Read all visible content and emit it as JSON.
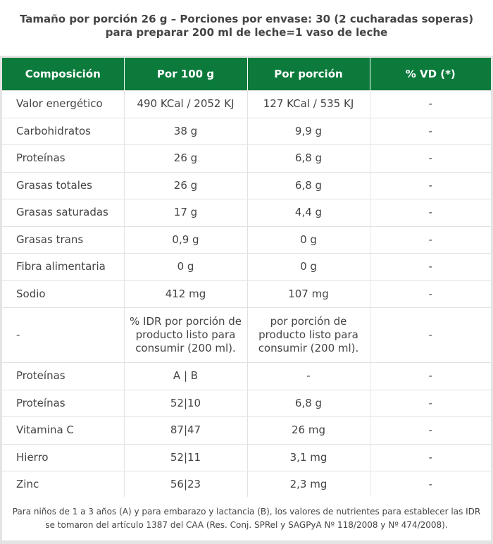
{
  "title": {
    "line1": "Tamaño por porción 26 g – Porciones por envase: 30 (2 cucharadas soperas)",
    "line2": "para preparar 200 ml de leche=1 vaso de leche"
  },
  "table": {
    "headers": [
      "Composición",
      "Por 100 g",
      "Por porción",
      "% VD (*)"
    ],
    "rows": [
      [
        "Valor energético",
        "490 KCal / 2052 KJ",
        "127 KCal / 535 KJ",
        "-"
      ],
      [
        "Carbohidratos",
        "38 g",
        "9,9 g",
        "-"
      ],
      [
        "Proteínas",
        "26 g",
        "6,8 g",
        "-"
      ],
      [
        "Grasas totales",
        "26 g",
        "6,8 g",
        "-"
      ],
      [
        "Grasas saturadas",
        "17 g",
        "4,4 g",
        "-"
      ],
      [
        "Grasas trans",
        "0,9 g",
        "0 g",
        "-"
      ],
      [
        "Fibra alimentaria",
        "0 g",
        "0 g",
        "-"
      ],
      [
        "Sodio",
        "412 mg",
        "107 mg",
        "-"
      ],
      [
        "-",
        "% IDR por porción de producto listo para consumir (200 ml).",
        "por porción de producto listo para consumir (200 ml).",
        "-"
      ],
      [
        "Proteínas",
        "A | B",
        "-",
        "-"
      ],
      [
        "Proteínas",
        "52|10",
        "6,8 g",
        "-"
      ],
      [
        "Vitamina C",
        "87|47",
        "26 mg",
        "-"
      ],
      [
        "Hierro",
        "52|11",
        "3,1 mg",
        "-"
      ],
      [
        "Zinc",
        "56|23",
        "2,3 mg",
        "-"
      ]
    ]
  },
  "footnote": {
    "line1": "Para niños de 1 a 3 años (A) y para embarazo y lactancia (B), los valores de nutrientes para establecer las IDR",
    "line2": "se tomaron del artículo 1387 del CAA (Res. Conj. SPRel y SAGPyA Nº 118/2008 y Nº 474/2008)."
  }
}
